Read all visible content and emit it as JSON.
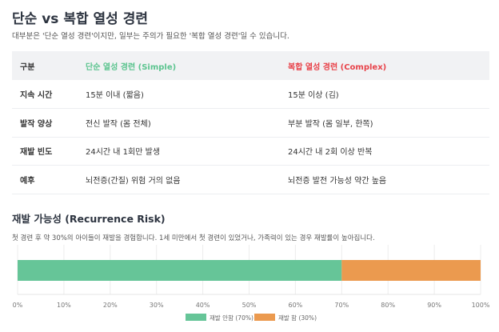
{
  "title": "단순 vs 복합 열성 경련",
  "subtitle": "대부분은 '단순 열성 경련'이지만, 일부는 주의가 필요한 '복합 열성 경련'일 수 있습니다.",
  "table": {
    "headers": [
      "구분",
      "단순 열성 경련 (Simple)",
      "복합 열성 경련 (Complex)"
    ],
    "rows": [
      [
        "지속 시간",
        "15분 이내 (짧음)",
        "15분 이상 (김)"
      ],
      [
        "발작 양상",
        "전신 발작 (몸 전체)",
        "부분 발작 (몸 일부, 한쪽)"
      ],
      [
        "재발 빈도",
        "24시간 내 1회만 발생",
        "24시간 내 2회 이상 반복"
      ],
      [
        "예후",
        "뇌전증(간질) 위험 거의 없음",
        "뇌전증 발전 가능성 약간 높음"
      ]
    ]
  },
  "risk": {
    "title": "재발 가능성 (Recurrence Risk)",
    "desc": "첫 경련 후 약 30%의 아이들이 재발을 경험합니다. 1세 미만에서 첫 경련이 있었거나, 가족력이 있는 경우 재발률이 높아집니다."
  },
  "chart_data": {
    "type": "bar",
    "orientation": "horizontal",
    "stacked": true,
    "categories": [
      ""
    ],
    "series": [
      {
        "name": "재발 안함 (70%)",
        "values": [
          70
        ],
        "color": "#66c598"
      },
      {
        "name": "재발 함 (30%)",
        "values": [
          30
        ],
        "color": "#eb9a4f"
      }
    ],
    "xlim": [
      0,
      100
    ],
    "xticks": [
      "0%",
      "10%",
      "20%",
      "30%",
      "40%",
      "50%",
      "60%",
      "70%",
      "80%",
      "90%",
      "100%"
    ],
    "grid": true,
    "legend": "bottom"
  }
}
